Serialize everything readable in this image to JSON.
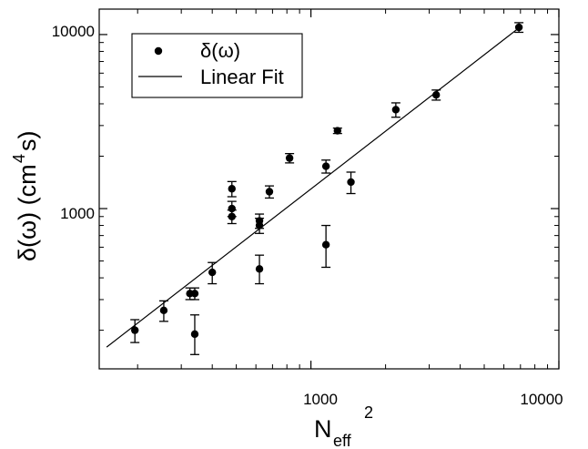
{
  "chart_data": {
    "type": "scatter",
    "x_scale": "log",
    "y_scale": "log",
    "xlim": [
      140,
      10000
    ],
    "ylim": [
      120,
      14000
    ],
    "x_ticks": [
      {
        "value": 1000,
        "label": "1000"
      },
      {
        "value": 10000,
        "label": "10000"
      }
    ],
    "y_ticks": [
      {
        "value": 1000,
        "label": "1000"
      },
      {
        "value": 10000,
        "label": "10000"
      }
    ],
    "xlabel": {
      "main": "N",
      "subscript": "eff",
      "superscript": "2"
    },
    "ylabel": {
      "main": "δ(ω) (cm",
      "superscript": "4",
      "suffix": "s)"
    },
    "legend": {
      "position": "top-left",
      "entries": [
        {
          "label": "δ(ω)",
          "kind": "marker"
        },
        {
          "label": "Linear Fit",
          "kind": "line"
        }
      ]
    },
    "grid": false,
    "series": [
      {
        "name": "δ(ω)",
        "kind": "scatter",
        "color": "#000000",
        "points": [
          {
            "x": 195,
            "y": 200,
            "err_low": 30,
            "err_high": 30
          },
          {
            "x": 255,
            "y": 260,
            "err_low": 35,
            "err_high": 35
          },
          {
            "x": 325,
            "y": 325,
            "err_low": 25,
            "err_high": 25
          },
          {
            "x": 340,
            "y": 325,
            "err_low": 25,
            "err_high": 25
          },
          {
            "x": 340,
            "y": 190,
            "err_low": 45,
            "err_high": 55
          },
          {
            "x": 400,
            "y": 430,
            "err_low": 60,
            "err_high": 60
          },
          {
            "x": 480,
            "y": 1300,
            "err_low": 130,
            "err_high": 130
          },
          {
            "x": 480,
            "y": 1000,
            "err_low": 100,
            "err_high": 100
          },
          {
            "x": 480,
            "y": 900,
            "err_low": 80,
            "err_high": 80
          },
          {
            "x": 620,
            "y": 850,
            "err_low": 80,
            "err_high": 80
          },
          {
            "x": 620,
            "y": 800,
            "err_low": 80,
            "err_high": 80
          },
          {
            "x": 620,
            "y": 450,
            "err_low": 80,
            "err_high": 90
          },
          {
            "x": 680,
            "y": 1250,
            "err_low": 100,
            "err_high": 100
          },
          {
            "x": 820,
            "y": 1950,
            "err_low": 120,
            "err_high": 120
          },
          {
            "x": 1150,
            "y": 1750,
            "err_low": 150,
            "err_high": 150
          },
          {
            "x": 1150,
            "y": 620,
            "err_low": 160,
            "err_high": 180
          },
          {
            "x": 1280,
            "y": 2800,
            "err_low": 100,
            "err_high": 100
          },
          {
            "x": 1450,
            "y": 1420,
            "err_low": 200,
            "err_high": 200
          },
          {
            "x": 2200,
            "y": 3700,
            "err_low": 350,
            "err_high": 350
          },
          {
            "x": 3200,
            "y": 4500,
            "err_low": 300,
            "err_high": 300
          },
          {
            "x": 6900,
            "y": 11000,
            "err_low": 700,
            "err_high": 700
          }
        ]
      },
      {
        "name": "Linear Fit",
        "kind": "line",
        "color": "#000000",
        "points": [
          {
            "x": 150,
            "y": 160
          },
          {
            "x": 6950,
            "y": 11000
          }
        ]
      }
    ]
  }
}
